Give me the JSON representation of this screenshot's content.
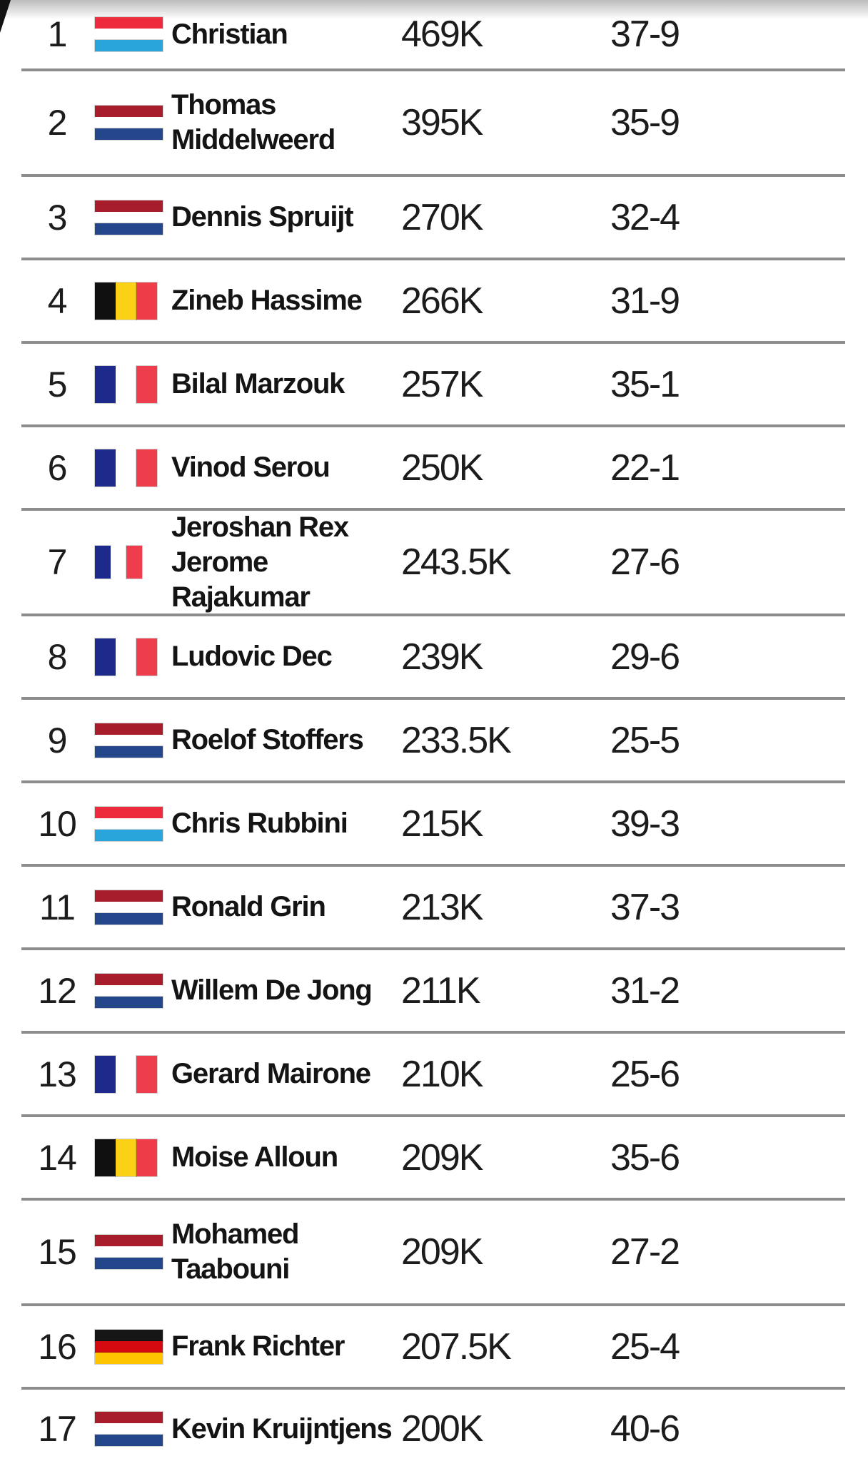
{
  "table": {
    "rows": [
      {
        "rank": "1",
        "flag": "lu",
        "name": "Christian",
        "value": "469K",
        "record": "37-9"
      },
      {
        "rank": "2",
        "flag": "nl",
        "name": "Thomas\nMiddelweerd",
        "value": "395K",
        "record": "35-9"
      },
      {
        "rank": "3",
        "flag": "nl",
        "name": "Dennis Spruijt",
        "value": "270K",
        "record": "32-4"
      },
      {
        "rank": "4",
        "flag": "be",
        "name": "Zineb Hassime",
        "value": "266K",
        "record": "31-9"
      },
      {
        "rank": "5",
        "flag": "fr",
        "name": "Bilal Marzouk",
        "value": "257K",
        "record": "35-1"
      },
      {
        "rank": "6",
        "flag": "fr",
        "name": "Vinod Serou",
        "value": "250K",
        "record": "22-1"
      },
      {
        "rank": "7",
        "flag": "fr",
        "flag_size": "small",
        "name": "Jeroshan Rex\nJerome Rajakumar",
        "value": "243.5K",
        "record": "27-6"
      },
      {
        "rank": "8",
        "flag": "fr",
        "name": "Ludovic Dec",
        "value": "239K",
        "record": "29-6"
      },
      {
        "rank": "9",
        "flag": "nl",
        "name": "Roelof Stoffers",
        "value": "233.5K",
        "record": "25-5"
      },
      {
        "rank": "10",
        "flag": "lu",
        "name": "Chris Rubbini",
        "value": "215K",
        "record": "39-3"
      },
      {
        "rank": "11",
        "flag": "nl",
        "name": "Ronald Grin",
        "value": "213K",
        "record": "37-3"
      },
      {
        "rank": "12",
        "flag": "nl",
        "name": "Willem De Jong",
        "value": "211K",
        "record": "31-2"
      },
      {
        "rank": "13",
        "flag": "fr",
        "name": "Gerard Mairone",
        "value": "210K",
        "record": "25-6"
      },
      {
        "rank": "14",
        "flag": "be",
        "name": "Moise Alloun",
        "value": "209K",
        "record": "35-6"
      },
      {
        "rank": "15",
        "flag": "nl",
        "name": "Mohamed\nTaabouni",
        "value": "209K",
        "record": "27-2"
      },
      {
        "rank": "16",
        "flag": "de",
        "name": "Frank Richter",
        "value": "207.5K",
        "record": "25-4"
      },
      {
        "rank": "17",
        "flag": "nl",
        "name": "Kevin Kruijntjens",
        "value": "200K",
        "record": "40-6"
      }
    ]
  },
  "flags": {
    "lu": {
      "label": "luxembourg-flag",
      "orientation": "horizontal",
      "colors": [
        "#EE2B3C",
        "#FFFFFF",
        "#2AA5DC"
      ]
    },
    "nl": {
      "label": "netherlands-flag",
      "orientation": "horizontal",
      "colors": [
        "#A81D2C",
        "#FFFFFF",
        "#24478C"
      ]
    },
    "be": {
      "label": "belgium-flag",
      "orientation": "vertical",
      "colors": [
        "#101010",
        "#FBD117",
        "#EE3D48"
      ]
    },
    "fr": {
      "label": "france-flag",
      "orientation": "vertical",
      "colors": [
        "#1D2A8C",
        "#FFFFFF",
        "#EE3D4D"
      ]
    },
    "de": {
      "label": "germany-flag",
      "orientation": "horizontal",
      "colors": [
        "#161616",
        "#D40A10",
        "#FFC400"
      ]
    }
  },
  "theme": {
    "background": "#FFFFFF",
    "divider": "#8D8D8D",
    "text": "#1C1C1C",
    "top_shadow": "#BCBCBC"
  }
}
